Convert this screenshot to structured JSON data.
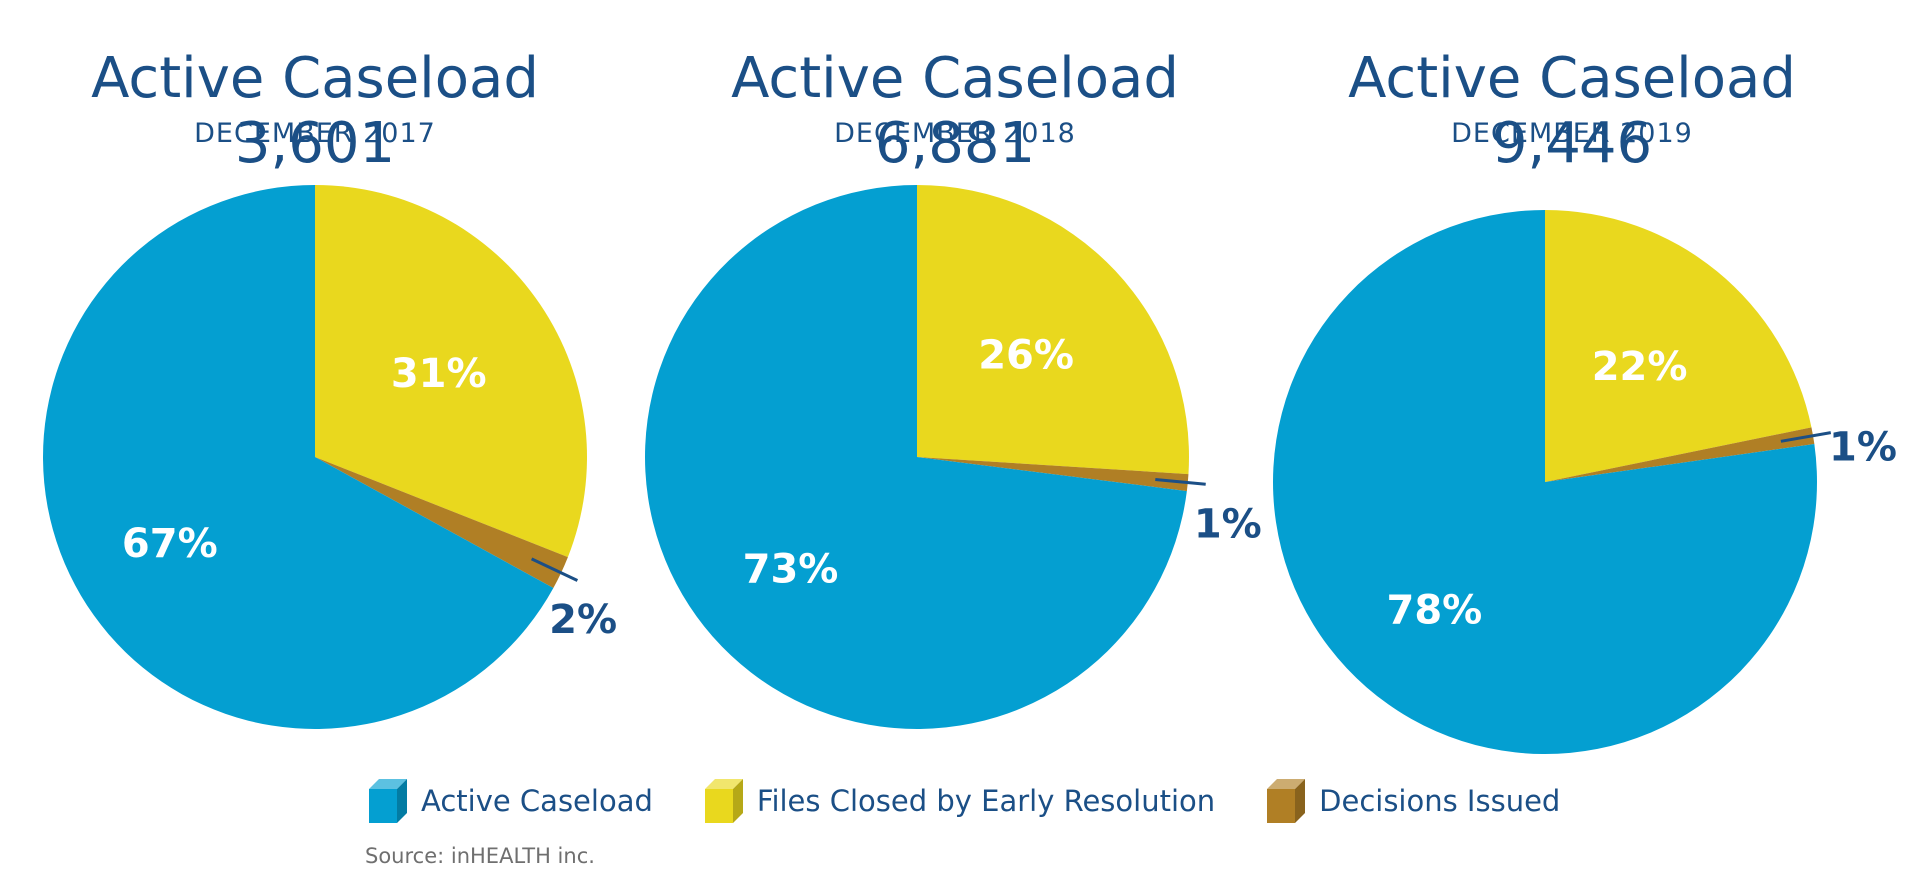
{
  "colors": {
    "active": "#049fd1",
    "closed": "#e9d81e",
    "decisions": "#b07f25",
    "title": "#1b4f86",
    "source": "#6f6f6f"
  },
  "chart_data": [
    {
      "type": "pie",
      "title": "Active Caseload 3,601",
      "subtitle": "DECEMBER 2017",
      "categories": [
        "Files Closed by Early Resolution",
        "Decisions Issued",
        "Active Caseload"
      ],
      "values": [
        31,
        2,
        67
      ],
      "labels": [
        "31%",
        "2%",
        "67%"
      ]
    },
    {
      "type": "pie",
      "title": "Active Caseload 6,881",
      "subtitle": "DECEMBER 2018",
      "categories": [
        "Files Closed by Early Resolution",
        "Decisions Issued",
        "Active Caseload"
      ],
      "values": [
        26,
        1,
        73
      ],
      "labels": [
        "26%",
        "1%",
        "73%"
      ]
    },
    {
      "type": "pie",
      "title": "Active Caseload 9,446",
      "subtitle": "DECEMBER 2019",
      "categories": [
        "Files Closed by Early Resolution",
        "Decisions Issued",
        "Active Caseload"
      ],
      "values": [
        22,
        1,
        78
      ],
      "labels": [
        "22%",
        "1%",
        "78%"
      ]
    }
  ],
  "legend": {
    "items": [
      {
        "label": "Active Caseload",
        "color": "#049fd1"
      },
      {
        "label": "Files Closed by Early Resolution",
        "color": "#e9d81e"
      },
      {
        "label": "Decisions Issued",
        "color": "#b07f25"
      }
    ]
  },
  "source": "Source: inHEALTH inc."
}
